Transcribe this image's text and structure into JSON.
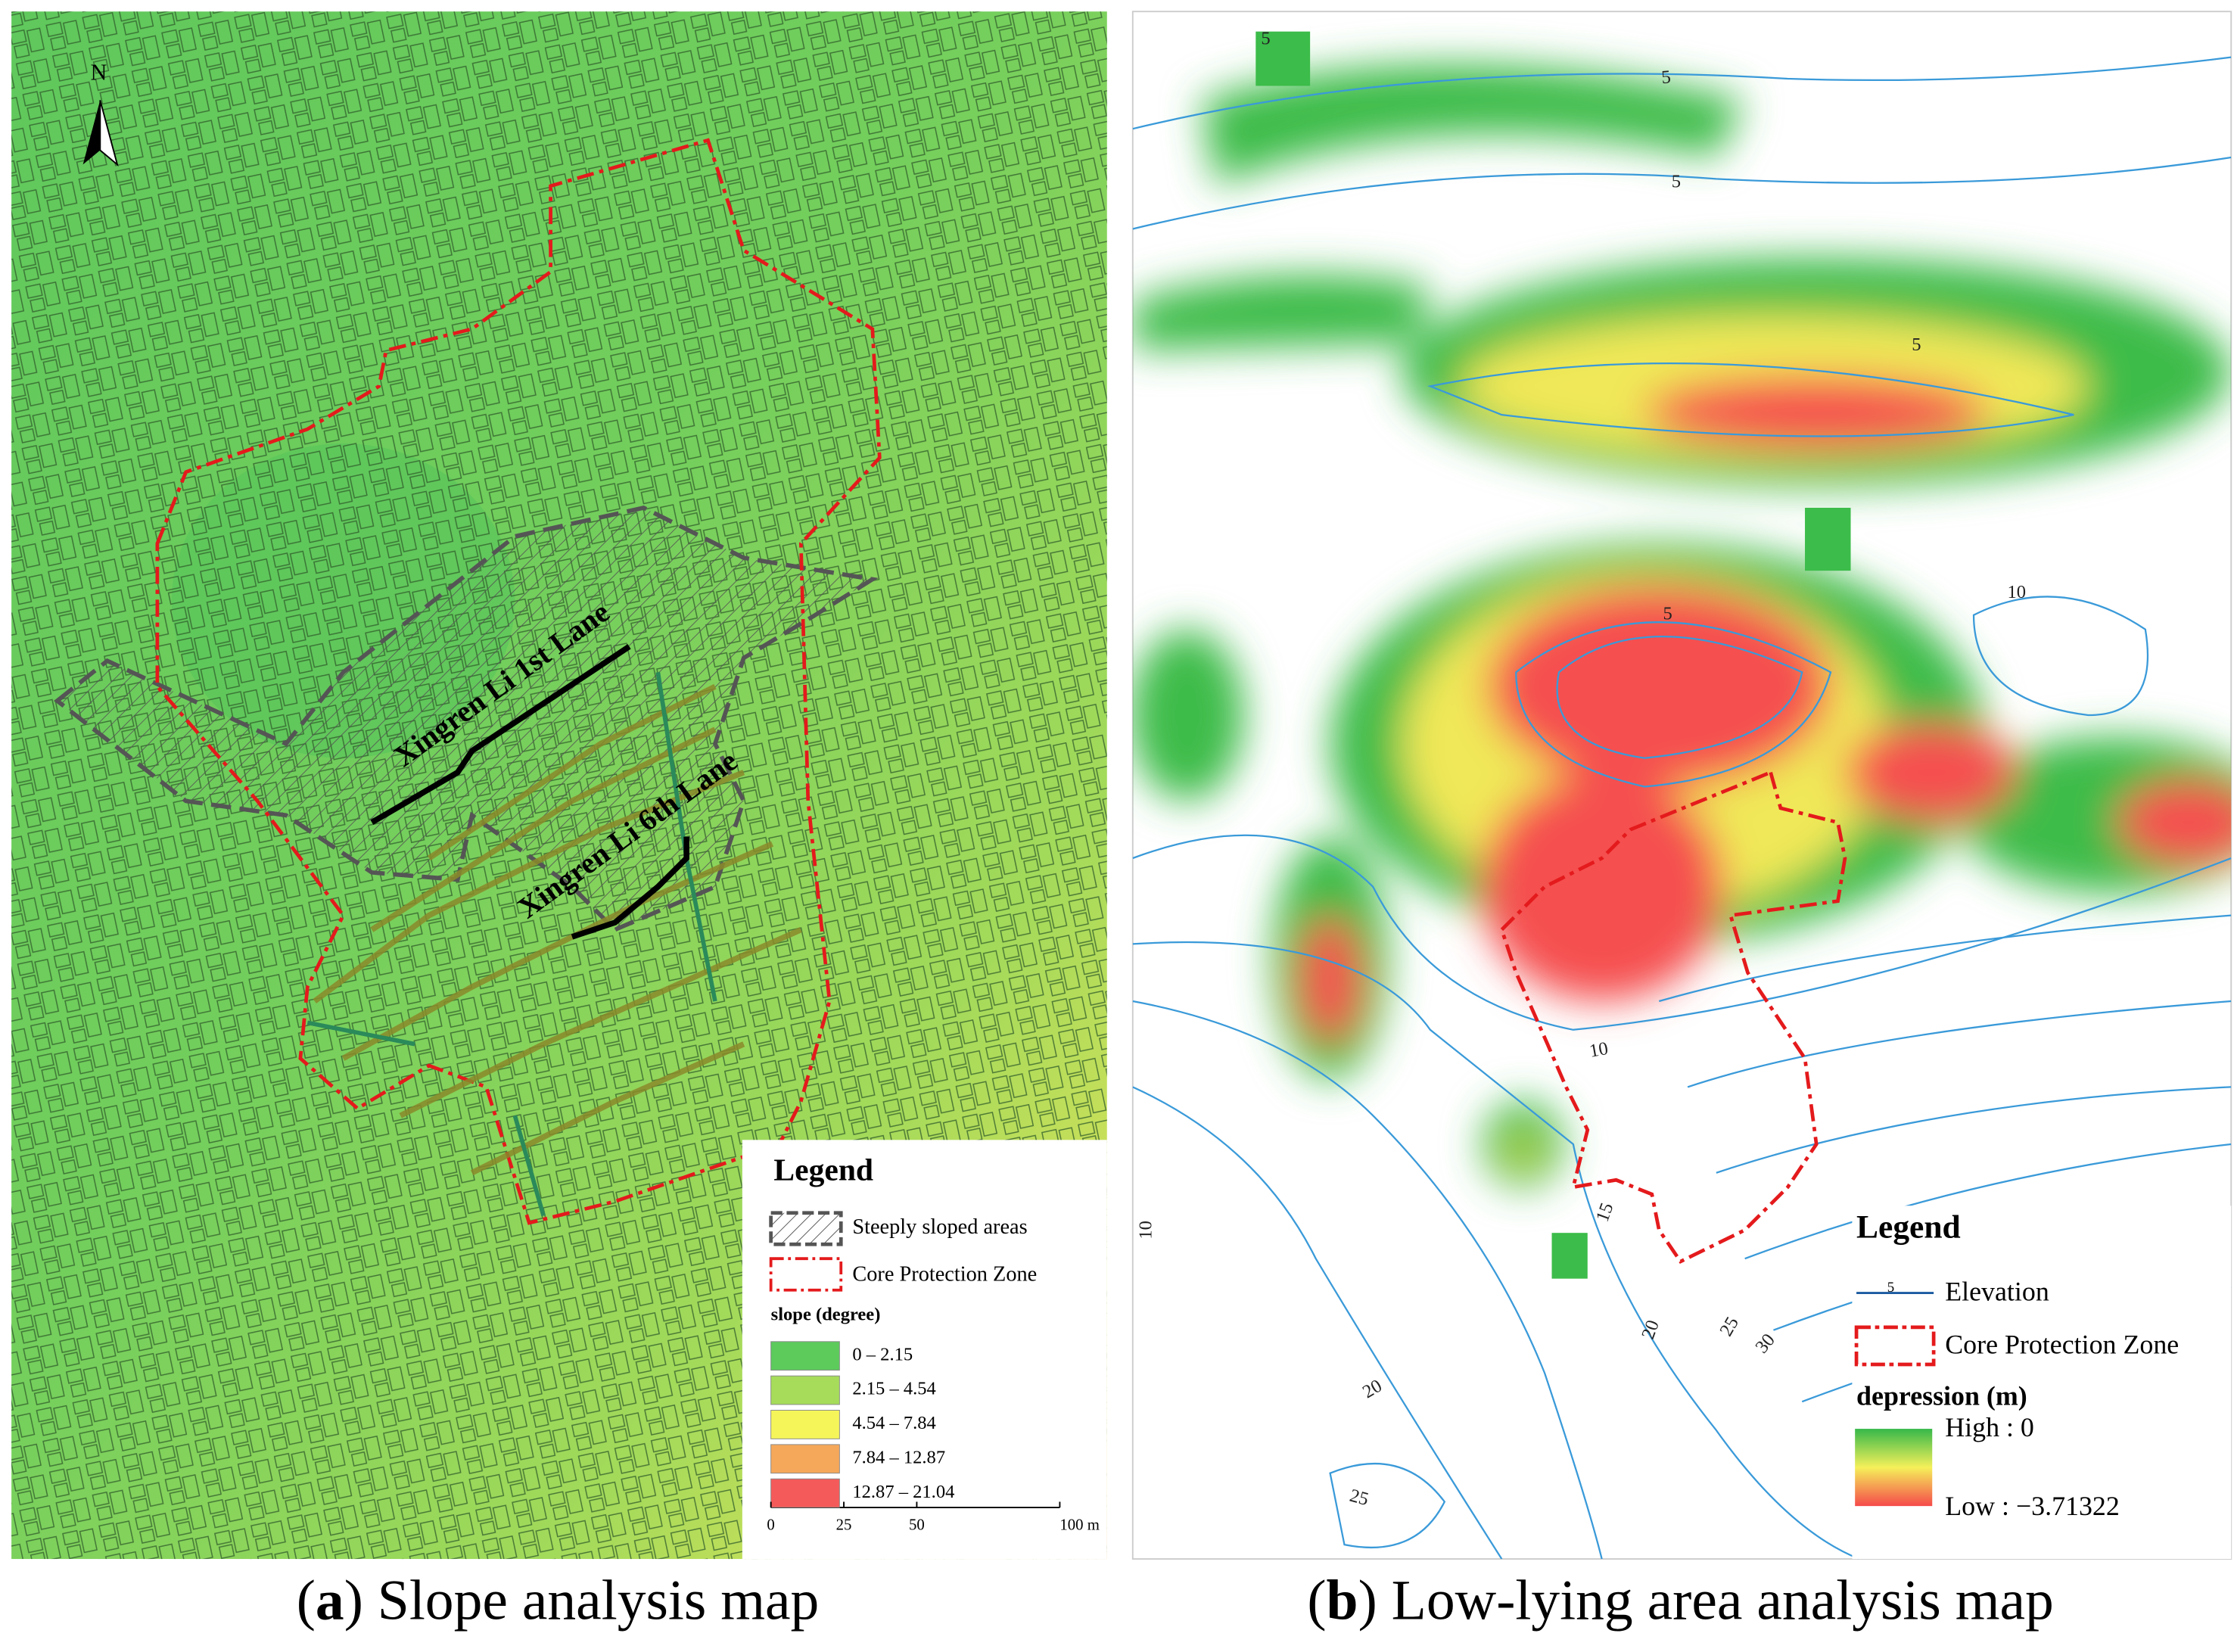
{
  "panel_a": {
    "north_label": "N",
    "lane_labels": [
      "Xingren Li 1st Lane",
      "Xingren Li 6th Lane"
    ],
    "legend": {
      "title": "Legend",
      "items": [
        "Steeply sloped areas",
        "Core Protection Zone"
      ],
      "slope_title": "slope (degree)",
      "slope_classes": [
        {
          "label": "0 – 2.15",
          "color": "#5ccb5c"
        },
        {
          "label": "2.15 – 4.54",
          "color": "#a6dc5a"
        },
        {
          "label": "4.54 – 7.84",
          "color": "#f5f55a"
        },
        {
          "label": "7.84 – 12.87",
          "color": "#f5a85a"
        },
        {
          "label": "12.87 – 21.04",
          "color": "#f55a5a"
        }
      ],
      "scale_labels": [
        "0",
        "25",
        "50",
        "100 m"
      ]
    },
    "caption": {
      "open": "(",
      "letter": "a",
      "rest": ") Slope analysis map"
    }
  },
  "panel_b": {
    "contour_labels": [
      "5",
      "5",
      "5",
      "5",
      "5",
      "10",
      "10",
      "10",
      "15",
      "20",
      "20",
      "25",
      "25",
      "30"
    ],
    "legend": {
      "title": "Legend",
      "elevation_sample": "5",
      "items": [
        "Elevation",
        "Core Protection Zone"
      ],
      "depression_title": "depression (m)",
      "high": "High : 0",
      "low": "Low : −3.71322"
    },
    "caption": {
      "open": "(",
      "letter": "b",
      "rest": ") Low-lying area analysis map"
    }
  }
}
